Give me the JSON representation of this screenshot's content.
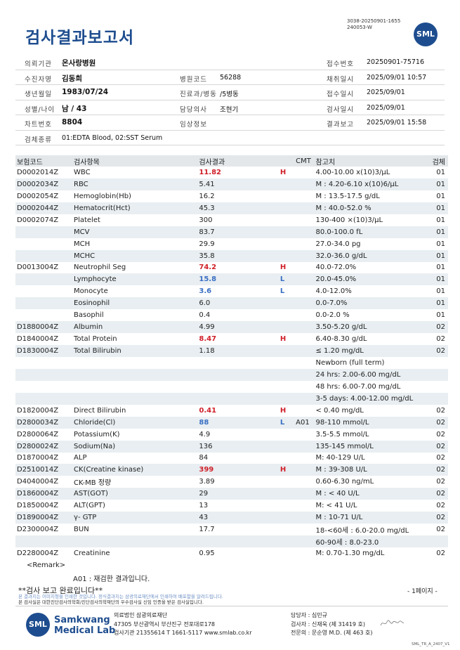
{
  "header": {
    "title": "검사결과보고서",
    "doc_id_line1": "3038-20250901-1655",
    "doc_id_line2": "240053-W",
    "logo": "SML"
  },
  "info": {
    "hospital_label": "의뢰기관",
    "hospital": "온사랑병원",
    "receipt_no_label": "접수번호",
    "receipt_no": "20250901-75716",
    "patient_label": "수진자명",
    "patient": "김동희",
    "hosp_code_label": "병원코드",
    "hosp_code": "56288",
    "collect_label": "채취일시",
    "collect": "2025/09/01 10:57",
    "dob_label": "생년월일",
    "dob": "1983/07/24",
    "dept_label": "진료과/병동",
    "dept": "/5병동",
    "receipt_date_label": "접수일시",
    "receipt_date": "2025/09/01",
    "sex_age_label": "성별/나이",
    "sex_age": "남 / 43",
    "doctor_label": "담당의사",
    "doctor": "조현기",
    "test_date_label": "검사일시",
    "test_date": "2025/09/01",
    "chart_label": "차트번호",
    "chart": "8804",
    "clinical_label": "임상정보",
    "clinical": "",
    "report_label": "결과보고",
    "report": "2025/09/01 15:58",
    "specimen_label": "검체종류",
    "specimen": "01:EDTA Blood, 02:SST Serum"
  },
  "table": {
    "headers": [
      "보험코드",
      "검사항목",
      "검사결과",
      "",
      "CMT",
      "참고치",
      "검체"
    ],
    "rows": [
      {
        "code": "D0002014Z",
        "item": "WBC",
        "result": "11.82",
        "flag": "H",
        "cmt": "",
        "ref": "4.00-10.00 x(10)3/μL",
        "spec": "01"
      },
      {
        "code": "D0002034Z",
        "item": "RBC",
        "result": "5.41",
        "flag": "",
        "cmt": "",
        "ref": "M : 4.20-6.10 x(10)6/μL",
        "spec": "01"
      },
      {
        "code": "D0002054Z",
        "item": "Hemoglobin(Hb)",
        "result": "16.2",
        "flag": "",
        "cmt": "",
        "ref": "M : 13.5-17.5 g/dL",
        "spec": "01"
      },
      {
        "code": "D0002044Z",
        "item": "Hematocrit(Hct)",
        "result": "45.3",
        "flag": "",
        "cmt": "",
        "ref": "M : 40.0-52.0 %",
        "spec": "01"
      },
      {
        "code": "D0002074Z",
        "item": "Platelet",
        "result": "300",
        "flag": "",
        "cmt": "",
        "ref": "130-400 ×(10)3/μL",
        "spec": "01"
      },
      {
        "code": "",
        "item": "MCV",
        "result": "83.7",
        "flag": "",
        "cmt": "",
        "ref": "80.0-100.0 fL",
        "spec": "01"
      },
      {
        "code": "",
        "item": "MCH",
        "result": "29.9",
        "flag": "",
        "cmt": "",
        "ref": "27.0-34.0 pg",
        "spec": "01"
      },
      {
        "code": "",
        "item": "MCHC",
        "result": "35.8",
        "flag": "",
        "cmt": "",
        "ref": "32.0-36.0 g/dL",
        "spec": "01"
      },
      {
        "code": "D0013004Z",
        "item": "Neutrophil Seg",
        "result": "74.2",
        "flag": "H",
        "cmt": "",
        "ref": "40.0-72.0%",
        "spec": "01"
      },
      {
        "code": "",
        "item": "Lymphocyte",
        "result": "15.8",
        "flag": "L",
        "cmt": "",
        "ref": "20.0-45.0%",
        "spec": "01"
      },
      {
        "code": "",
        "item": "Monocyte",
        "result": "3.6",
        "flag": "L",
        "cmt": "",
        "ref": "4.0-12.0%",
        "spec": "01"
      },
      {
        "code": "",
        "item": "Eosinophil",
        "result": "6.0",
        "flag": "",
        "cmt": "",
        "ref": "0.0-7.0%",
        "spec": "01"
      },
      {
        "code": "",
        "item": "Basophil",
        "result": "0.4",
        "flag": "",
        "cmt": "",
        "ref": "0.0-2.0 %",
        "spec": "01"
      },
      {
        "code": "D1880004Z",
        "item": "Albumin",
        "result": "4.99",
        "flag": "",
        "cmt": "",
        "ref": "3.50-5.20 g/dL",
        "spec": "02"
      },
      {
        "code": "D1840004Z",
        "item": "Total Protein",
        "result": "8.47",
        "flag": "H",
        "cmt": "",
        "ref": "6.40-8.30 g/dL",
        "spec": "02"
      },
      {
        "code": "D1830004Z",
        "item": "Total Bilirubin",
        "result": "1.18",
        "flag": "",
        "cmt": "",
        "ref": "≤ 1.20 mg/dL",
        "spec": "02"
      },
      {
        "code": "",
        "item": "",
        "result": "",
        "flag": "",
        "cmt": "",
        "ref": "Newborn (full term)",
        "spec": ""
      },
      {
        "code": "",
        "item": "",
        "result": "",
        "flag": "",
        "cmt": "",
        "ref": "24 hrs: 2.00-6.00 mg/dL",
        "spec": ""
      },
      {
        "code": "",
        "item": "",
        "result": "",
        "flag": "",
        "cmt": "",
        "ref": "48 hrs: 6.00-7.00 mg/dL",
        "spec": ""
      },
      {
        "code": "",
        "item": "",
        "result": "",
        "flag": "",
        "cmt": "",
        "ref": "3-5 days: 4.00-12.00 mg/dL",
        "spec": ""
      },
      {
        "code": "D1820004Z",
        "item": "Direct Bilirubin",
        "result": "0.41",
        "flag": "H",
        "cmt": "",
        "ref": "< 0.40 mg/dL",
        "spec": "02"
      },
      {
        "code": "D2800034Z",
        "item": "Chloride(Cl)",
        "result": "88",
        "flag": "L",
        "cmt": "A01",
        "ref": "98-110 mmol/L",
        "spec": "02"
      },
      {
        "code": "D2800064Z",
        "item": "Potassium(K)",
        "result": "4.9",
        "flag": "",
        "cmt": "",
        "ref": "3.5-5.5 mmol/L",
        "spec": "02"
      },
      {
        "code": "D2800024Z",
        "item": "Sodium(Na)",
        "result": "136",
        "flag": "",
        "cmt": "",
        "ref": "135-145 mmol/L",
        "spec": "02"
      },
      {
        "code": "D1870004Z",
        "item": "ALP",
        "result": "84",
        "flag": "",
        "cmt": "",
        "ref": "M: 40-129 U/L",
        "spec": "02"
      },
      {
        "code": "D2510014Z",
        "item": "CK(Creatine kinase)",
        "result": "399",
        "flag": "H",
        "cmt": "",
        "ref": "M : 39-308 U/L",
        "spec": "02"
      },
      {
        "code": "D4040004Z",
        "item": "CK-MB 정량",
        "result": "3.89",
        "flag": "",
        "cmt": "",
        "ref": "0.60-6.30 ng/mL",
        "spec": "02"
      },
      {
        "code": "D1860004Z",
        "item": "AST(GOT)",
        "result": "29",
        "flag": "",
        "cmt": "",
        "ref": "M : < 40 U/L",
        "spec": "02"
      },
      {
        "code": "D1850004Z",
        "item": "ALT(GPT)",
        "result": "13",
        "flag": "",
        "cmt": "",
        "ref": "M: < 41 U/L",
        "spec": "02"
      },
      {
        "code": "D1890004Z",
        "item": "γ- GTP",
        "result": "43",
        "flag": "",
        "cmt": "",
        "ref": "M : 10-71 U/L",
        "spec": "02"
      },
      {
        "code": "D2300004Z",
        "item": "BUN",
        "result": "17.7",
        "flag": "",
        "cmt": "",
        "ref": "18-<60세 : 6.0-20.0 mg/dL",
        "spec": "02"
      },
      {
        "code": "",
        "item": "",
        "result": "",
        "flag": "",
        "cmt": "",
        "ref": "60-90세 : 8.0-23.0",
        "spec": ""
      },
      {
        "code": "D2280004Z",
        "item": "Creatinine",
        "result": "0.95",
        "flag": "",
        "cmt": "",
        "ref": "M: 0.70-1.30 mg/dL",
        "spec": "02"
      }
    ]
  },
  "remark": {
    "label": "<Remark>",
    "text": "A01 : 재검한 결과입니다.",
    "done": "**검사 보고 완료입니다**",
    "page": "- 1페이지 -",
    "notice1": "본 결과지는 이미지형을 인쇄한 것입니다. 정식결과지는 삼광의료재단에서 인쇄하여 배포함을 알려드립니다.",
    "notice2": "본 검사실은 대한진단검사의학회/진단검사의학재단의 우수검사실 신임 인증을 받은 검사실입니다."
  },
  "footer": {
    "logo_name_1": "Samkwang",
    "logo_name_2": "Medical Lab",
    "org_1": "의료법인 삼광의료재단",
    "org_2": "47305 부산광역시 부산진구 전포대로178",
    "org_3": "검사기관 21355614 T 1661-5117 www.smlab.co.kr",
    "staff_1": "담당자 :  심민규",
    "staff_2": "검사자 :  신재욱 (제 31419 호)",
    "staff_3": "전문의 :  문순영 M.D. (제 463 호)",
    "form_code": "SML_TR_A_2407_V1"
  }
}
